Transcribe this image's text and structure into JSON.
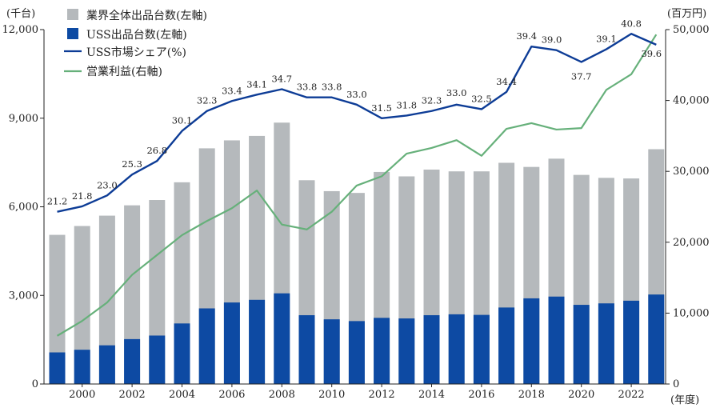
{
  "chart_data": {
    "type": "bar",
    "left_unit": "(千台)",
    "right_unit": "(百万円)",
    "x_unit": "(年度)",
    "x": [
      1999,
      2000,
      2001,
      2002,
      2003,
      2004,
      2005,
      2006,
      2007,
      2008,
      2009,
      2010,
      2011,
      2012,
      2013,
      2014,
      2015,
      2016,
      2017,
      2018,
      2019,
      2020,
      2021,
      2022,
      2023
    ],
    "x_tick_labels": [
      "2000",
      "2002",
      "2004",
      "2006",
      "2008",
      "2010",
      "2012",
      "2014",
      "2016",
      "2018",
      "2020",
      "2022"
    ],
    "y_left_ticks": [
      "0",
      "3,000",
      "6,000",
      "9,000",
      "12,000"
    ],
    "y_left_ticks_values": [
      0,
      3000,
      6000,
      9000,
      12000
    ],
    "y_right_ticks": [
      "0",
      "10,000",
      "20,000",
      "30,000",
      "40,000",
      "50,000"
    ],
    "y_right_ticks_values": [
      0,
      10000,
      20000,
      30000,
      40000,
      50000
    ],
    "ylim_left": [
      0,
      12000
    ],
    "ylim_right": [
      0,
      50000
    ],
    "series": [
      {
        "name": "業界全体出品台数(左軸)",
        "kind": "bar",
        "axis": "left",
        "color": "#b5b9bc",
        "values": [
          5050,
          5350,
          5700,
          6050,
          6230,
          6830,
          7980,
          8250,
          8400,
          8850,
          6900,
          6530,
          6470,
          7180,
          7030,
          7260,
          7200,
          7200,
          7490,
          7350,
          7630,
          7080,
          6980,
          6960,
          7950
        ]
      },
      {
        "name": "USS出品台数(左軸)",
        "kind": "bar",
        "axis": "left",
        "color": "#0d4aa3",
        "values": [
          1070,
          1160,
          1310,
          1520,
          1640,
          2050,
          2560,
          2760,
          2850,
          3070,
          2330,
          2190,
          2130,
          2240,
          2220,
          2330,
          2360,
          2340,
          2590,
          2900,
          2960,
          2680,
          2730,
          2820,
          3030
        ]
      },
      {
        "name": "USS市場シェア(%)",
        "kind": "line",
        "axis": "share",
        "color": "#0d3c96",
        "values": [
          21.2,
          21.8,
          23.0,
          25.3,
          26.8,
          30.1,
          32.3,
          33.4,
          34.1,
          34.7,
          33.8,
          33.8,
          33.0,
          31.5,
          31.8,
          32.3,
          33.0,
          32.5,
          34.4,
          39.4,
          39.0,
          37.7,
          39.1,
          40.8,
          39.6
        ],
        "labels": [
          "21.2",
          "21.8",
          "23.0",
          "25.3",
          "26.8",
          "30.1",
          "32.3",
          "33.4",
          "34.1",
          "34.7",
          "33.8",
          "33.8",
          "33.0",
          "31.5",
          "31.8",
          "32.3",
          "33.0",
          "32.5",
          "34.4",
          "39.4",
          "39.0",
          "37.7",
          "39.1",
          "40.8",
          "39.6"
        ]
      },
      {
        "name": "営業利益(右軸)",
        "kind": "line",
        "axis": "right",
        "color": "#66b07a",
        "values": [
          6800,
          8900,
          11500,
          15400,
          18200,
          21000,
          23000,
          24800,
          27300,
          22500,
          21800,
          24300,
          28000,
          29300,
          32500,
          33300,
          34400,
          32200,
          36000,
          36800,
          35900,
          36100,
          41500,
          43700,
          49300
        ]
      }
    ]
  }
}
